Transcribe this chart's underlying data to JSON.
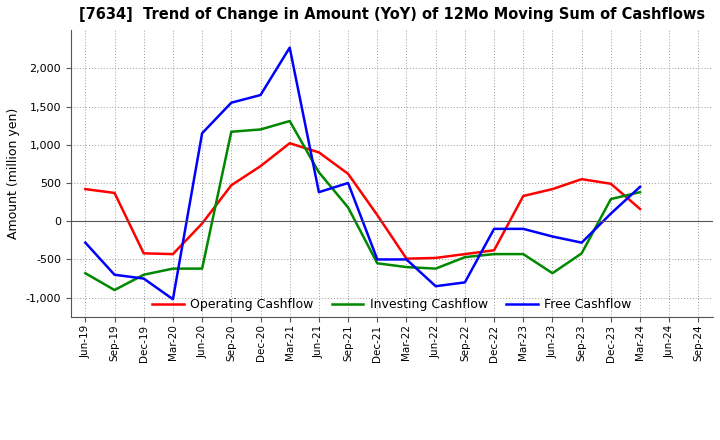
{
  "title": "[7634]  Trend of Change in Amount (YoY) of 12Mo Moving Sum of Cashflows",
  "ylabel": "Amount (million yen)",
  "xlabels": [
    "Jun-19",
    "Sep-19",
    "Dec-19",
    "Mar-20",
    "Jun-20",
    "Sep-20",
    "Dec-20",
    "Mar-21",
    "Jun-21",
    "Sep-21",
    "Dec-21",
    "Mar-22",
    "Jun-22",
    "Sep-22",
    "Dec-22",
    "Mar-23",
    "Jun-23",
    "Sep-23",
    "Dec-23",
    "Mar-24",
    "Jun-24",
    "Sep-24"
  ],
  "operating": [
    420,
    370,
    -420,
    -430,
    -30,
    470,
    720,
    1020,
    900,
    620,
    80,
    -490,
    -480,
    -430,
    -380,
    330,
    420,
    550,
    490,
    160,
    null,
    null
  ],
  "investing": [
    -680,
    -900,
    -700,
    -620,
    -620,
    1170,
    1200,
    1310,
    640,
    180,
    -550,
    -600,
    -620,
    -470,
    -430,
    -430,
    -680,
    -420,
    290,
    380,
    null,
    null
  ],
  "free": [
    -280,
    -700,
    -750,
    -1020,
    1150,
    1550,
    1650,
    2270,
    380,
    500,
    -500,
    -500,
    -850,
    -800,
    -100,
    -100,
    -200,
    -280,
    100,
    450,
    null,
    null
  ],
  "operating_color": "#ff0000",
  "investing_color": "#008800",
  "free_color": "#0000ff",
  "ylim": [
    -1250,
    2500
  ],
  "yticks": [
    -1000,
    -500,
    0,
    500,
    1000,
    1500,
    2000
  ],
  "background_color": "#ffffff",
  "grid_color": "#999999"
}
